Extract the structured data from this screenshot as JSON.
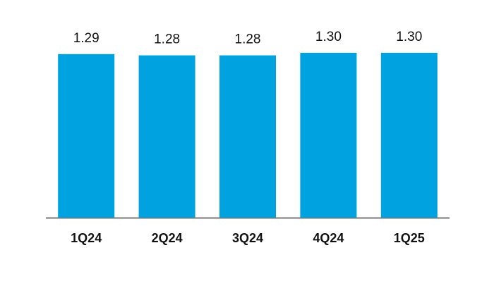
{
  "chart_data": {
    "type": "bar",
    "categories": [
      "1Q24",
      "2Q24",
      "3Q24",
      "4Q24",
      "1Q25"
    ],
    "values": [
      1.29,
      1.28,
      1.28,
      1.3,
      1.3
    ],
    "value_labels": [
      "1.29",
      "1.28",
      "1.28",
      "1.30",
      "1.30"
    ],
    "color": "#00a3e0",
    "ylim": [
      0,
      1.3
    ]
  }
}
